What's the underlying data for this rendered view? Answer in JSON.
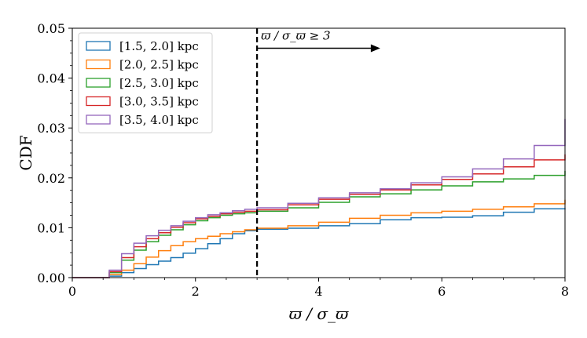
{
  "chart_data": {
    "type": "line",
    "subtype": "step-cdf",
    "title": "",
    "xlabel": "ϖ / σ_ϖ",
    "ylabel": "CDF",
    "xlim": [
      0,
      8
    ],
    "ylim": [
      0,
      0.05
    ],
    "xticks": [
      0,
      2,
      4,
      6,
      8
    ],
    "xtick_labels": [
      "0",
      "2",
      "4",
      "6",
      "8"
    ],
    "yticks": [
      0,
      0.01,
      0.02,
      0.03,
      0.04,
      0.05
    ],
    "ytick_labels": [
      "0.00",
      "0.01",
      "0.02",
      "0.03",
      "0.04",
      "0.05"
    ],
    "grid": false,
    "legend_position": "top-left",
    "vline": {
      "x": 3,
      "style": "dashed",
      "color": "#000000"
    },
    "annotation": {
      "text": "ϖ / σ_ϖ ≥ 3",
      "arrow_from_x": 3,
      "arrow_to_x": 5,
      "arrow_y": 0.046
    },
    "series": [
      {
        "name": "[1.5, 2.0] kpc",
        "color": "#1f77b4",
        "x": [
          0,
          0.4,
          0.6,
          0.8,
          1.0,
          1.2,
          1.4,
          1.6,
          1.8,
          2.0,
          2.2,
          2.4,
          2.6,
          2.8,
          3.0,
          3.5,
          4.0,
          4.5,
          5.0,
          5.5,
          6.0,
          6.5,
          7.0,
          7.5,
          8.0
        ],
        "values": [
          0.0,
          0.0,
          0.0003,
          0.001,
          0.0018,
          0.0026,
          0.0033,
          0.004,
          0.0049,
          0.0058,
          0.0068,
          0.0078,
          0.0088,
          0.0094,
          0.0097,
          0.0099,
          0.0104,
          0.0108,
          0.0116,
          0.012,
          0.0121,
          0.0124,
          0.0131,
          0.0138,
          0.0139
        ]
      },
      {
        "name": "[2.0, 2.5] kpc",
        "color": "#ff7f0e",
        "x": [
          0,
          0.4,
          0.6,
          0.8,
          1.0,
          1.2,
          1.4,
          1.6,
          1.8,
          2.0,
          2.2,
          2.4,
          2.6,
          2.8,
          3.0,
          3.5,
          4.0,
          4.5,
          5.0,
          5.5,
          6.0,
          6.5,
          7.0,
          7.5,
          8.0
        ],
        "values": [
          0.0,
          0.0,
          0.0006,
          0.0015,
          0.0028,
          0.0041,
          0.0054,
          0.0064,
          0.0072,
          0.0078,
          0.0083,
          0.0088,
          0.0092,
          0.0096,
          0.0099,
          0.0104,
          0.0111,
          0.0119,
          0.0125,
          0.013,
          0.0133,
          0.0137,
          0.0142,
          0.0148,
          0.0156
        ]
      },
      {
        "name": "[2.5, 3.0] kpc",
        "color": "#2ca02c",
        "x": [
          0,
          0.4,
          0.6,
          0.8,
          1.0,
          1.2,
          1.4,
          1.6,
          1.8,
          2.0,
          2.2,
          2.4,
          2.6,
          2.8,
          3.0,
          3.5,
          4.0,
          4.5,
          5.0,
          5.5,
          6.0,
          6.5,
          7.0,
          7.5,
          8.0
        ],
        "values": [
          0.0,
          0.0,
          0.001,
          0.0035,
          0.0055,
          0.0072,
          0.0085,
          0.0096,
          0.0106,
          0.0114,
          0.012,
          0.0125,
          0.0128,
          0.013,
          0.0133,
          0.014,
          0.0151,
          0.0162,
          0.0168,
          0.0176,
          0.0184,
          0.0192,
          0.0198,
          0.0205,
          0.0214
        ]
      },
      {
        "name": "[3.0, 3.5] kpc",
        "color": "#d62728",
        "x": [
          0,
          0.4,
          0.6,
          0.8,
          1.0,
          1.2,
          1.4,
          1.6,
          1.8,
          2.0,
          2.2,
          2.4,
          2.6,
          2.8,
          3.0,
          3.5,
          4.0,
          4.5,
          5.0,
          5.5,
          6.0,
          6.5,
          7.0,
          7.5,
          8.0
        ],
        "values": [
          0.0,
          0.0,
          0.0012,
          0.004,
          0.0062,
          0.0078,
          0.009,
          0.0101,
          0.011,
          0.0118,
          0.0123,
          0.0128,
          0.0131,
          0.0133,
          0.0136,
          0.0146,
          0.0157,
          0.0167,
          0.0176,
          0.0186,
          0.0197,
          0.0208,
          0.0222,
          0.0236,
          0.0247
        ]
      },
      {
        "name": "[3.5, 4.0] kpc",
        "color": "#9467bd",
        "x": [
          0,
          0.4,
          0.6,
          0.8,
          1.0,
          1.2,
          1.4,
          1.6,
          1.8,
          2.0,
          2.2,
          2.4,
          2.6,
          2.8,
          3.0,
          3.5,
          4.0,
          4.5,
          5.0,
          5.5,
          6.0,
          6.5,
          7.0,
          7.5,
          8.0
        ],
        "values": [
          0.0,
          0.0,
          0.0015,
          0.0048,
          0.0069,
          0.0084,
          0.0095,
          0.0104,
          0.0113,
          0.012,
          0.0126,
          0.013,
          0.0134,
          0.0137,
          0.014,
          0.0149,
          0.016,
          0.017,
          0.0178,
          0.019,
          0.0202,
          0.0218,
          0.0238,
          0.0265,
          0.0318
        ]
      }
    ]
  }
}
